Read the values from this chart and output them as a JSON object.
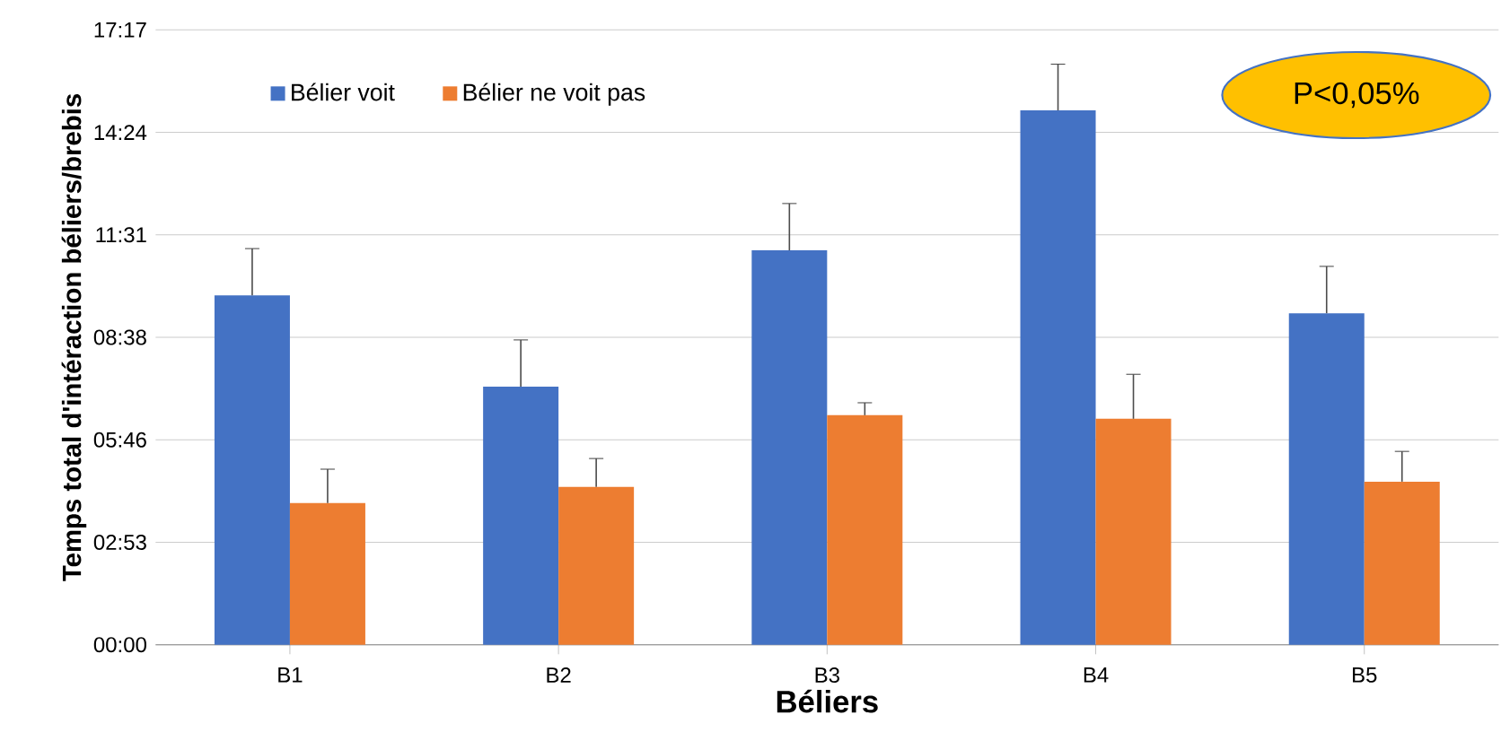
{
  "chart_data": {
    "type": "bar",
    "xlabel": "Béliers",
    "ylabel": "Temps total d'intéraction béliers/brebis",
    "categories": [
      "B1",
      "B2",
      "B3",
      "B4",
      "B5"
    ],
    "series": [
      {
        "name": "Bélier voit",
        "color": "#4472c4",
        "values": [
          589,
          435,
          665,
          901,
          559
        ],
        "errors": [
          [
            589,
            668
          ],
          [
            435,
            514
          ],
          [
            665,
            744
          ],
          [
            901,
            979
          ],
          [
            559,
            638
          ]
        ]
      },
      {
        "name": "Bélier ne voit pas",
        "color": "#ed7d31",
        "values": [
          239,
          266,
          387,
          381,
          275
        ],
        "errors": [
          [
            239,
            296
          ],
          [
            266,
            314
          ],
          [
            387,
            408
          ],
          [
            381,
            456
          ],
          [
            275,
            326
          ]
        ]
      }
    ],
    "ylim": [
      0,
      1036.8
    ],
    "yticks": [
      {
        "value": 0,
        "label": "00:00"
      },
      {
        "value": 172.8,
        "label": "02:53"
      },
      {
        "value": 345.6,
        "label": "05:46"
      },
      {
        "value": 518.4,
        "label": "08:38"
      },
      {
        "value": 691.2,
        "label": "11:31"
      },
      {
        "value": 864,
        "label": "14:24"
      },
      {
        "value": 1036.8,
        "label": "17:17"
      }
    ],
    "grid": "y",
    "legend": "top left",
    "annotations": [
      "P<0,05%"
    ]
  }
}
